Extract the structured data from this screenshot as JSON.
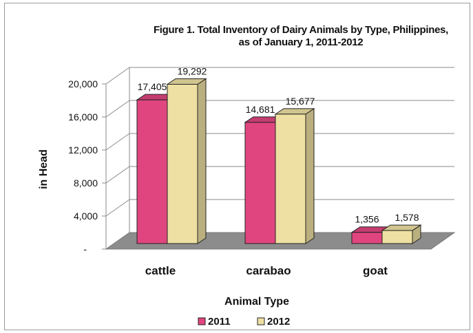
{
  "chart_data": {
    "type": "bar",
    "title_line1": "Figure 1.  Total Inventory of Dairy Animals by Type, Philippines,",
    "title_line2": "as of January 1, 2011-2012",
    "xlabel": "Animal Type",
    "ylabel": "in Head",
    "categories": [
      "cattle",
      "carabao",
      "goat"
    ],
    "series": [
      {
        "name": "2011",
        "values": [
          17405,
          14681,
          1356
        ],
        "labels": [
          "17,405",
          "14,681",
          "1,356"
        ],
        "color": "#e0457f"
      },
      {
        "name": "2012",
        "values": [
          19292,
          15677,
          1578
        ],
        "labels": [
          "19,292",
          "15,677",
          "1,578"
        ],
        "color": "#eee0a2"
      }
    ],
    "yticks": [
      0,
      4000,
      8000,
      12000,
      16000,
      20000
    ],
    "ytick_labels": [
      "-",
      "4,000",
      "8,000",
      "12,000",
      "16,000",
      "20,000"
    ],
    "ylim": [
      0,
      20000
    ],
    "grid": true,
    "legend_position": "bottom",
    "floor_color": "#8c8c8c"
  }
}
